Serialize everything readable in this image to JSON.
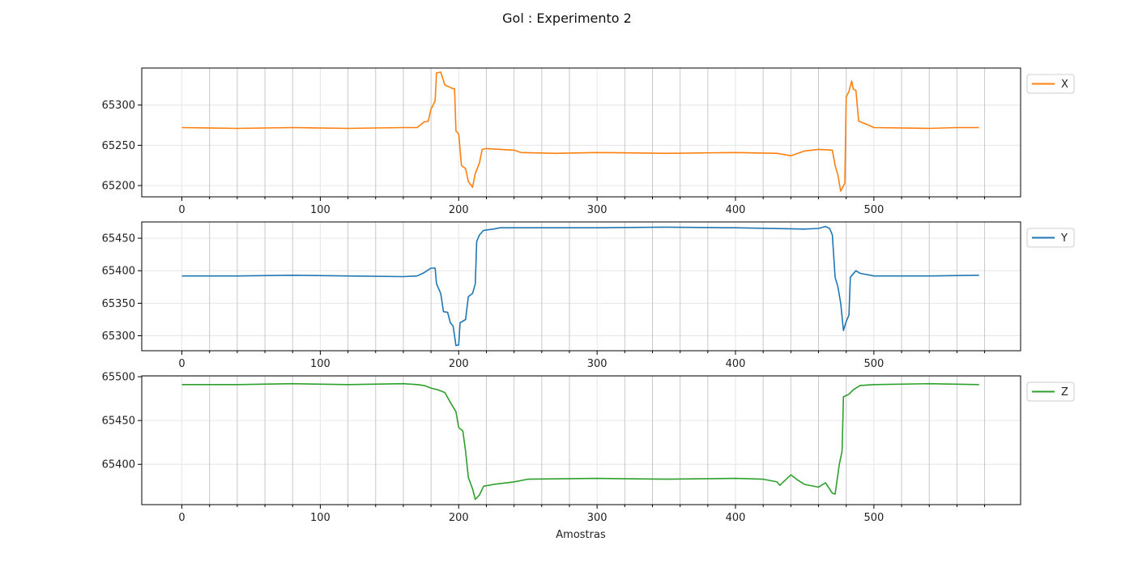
{
  "figure": {
    "title": "Gol : Experimento 2",
    "xlabel": "Amostras"
  },
  "chart_data": [
    {
      "type": "line",
      "title": "",
      "xlabel": "",
      "ylabel": "",
      "xlim": [
        -29,
        606
      ],
      "ylim": [
        65186,
        65346
      ],
      "xticks": [
        0,
        100,
        200,
        300,
        400,
        500
      ],
      "yticks": [
        65200,
        65250,
        65300
      ],
      "grid": true,
      "legend": "right-outside-top",
      "series": [
        {
          "name": "X",
          "color": "#ff7f0e",
          "points": [
            [
              0,
              65272
            ],
            [
              40,
              65271
            ],
            [
              80,
              65272
            ],
            [
              120,
              65271
            ],
            [
              160,
              65272
            ],
            [
              170,
              65272
            ],
            [
              175,
              65279
            ],
            [
              178,
              65280
            ],
            [
              180,
              65295
            ],
            [
              183,
              65305
            ],
            [
              184,
              65340
            ],
            [
              187,
              65341
            ],
            [
              190,
              65325
            ],
            [
              195,
              65321
            ],
            [
              197,
              65320
            ],
            [
              198,
              65268
            ],
            [
              200,
              65264
            ],
            [
              202,
              65225
            ],
            [
              205,
              65221
            ],
            [
              207,
              65205
            ],
            [
              210,
              65198
            ],
            [
              212,
              65215
            ],
            [
              215,
              65228
            ],
            [
              217,
              65245
            ],
            [
              220,
              65246
            ],
            [
              240,
              65244
            ],
            [
              245,
              65241
            ],
            [
              270,
              65240
            ],
            [
              300,
              65241
            ],
            [
              350,
              65240
            ],
            [
              400,
              65241
            ],
            [
              430,
              65240
            ],
            [
              440,
              65237
            ],
            [
              450,
              65243
            ],
            [
              460,
              65245
            ],
            [
              470,
              65244
            ],
            [
              472,
              65225
            ],
            [
              474,
              65213
            ],
            [
              476,
              65193
            ],
            [
              479,
              65203
            ],
            [
              480,
              65310
            ],
            [
              482,
              65317
            ],
            [
              484,
              65330
            ],
            [
              485,
              65320
            ],
            [
              487,
              65318
            ],
            [
              489,
              65280
            ],
            [
              495,
              65276
            ],
            [
              500,
              65272
            ],
            [
              540,
              65271
            ],
            [
              560,
              65272
            ],
            [
              576,
              65272
            ]
          ]
        }
      ]
    },
    {
      "type": "line",
      "title": "",
      "xlabel": "",
      "ylabel": "",
      "xlim": [
        -29,
        606
      ],
      "ylim": [
        65277,
        65475
      ],
      "xticks": [
        0,
        100,
        200,
        300,
        400,
        500
      ],
      "yticks": [
        65300,
        65350,
        65400,
        65450
      ],
      "grid": true,
      "legend": "right-outside-top",
      "series": [
        {
          "name": "Y",
          "color": "#1f77b4",
          "points": [
            [
              0,
              65392
            ],
            [
              40,
              65392
            ],
            [
              80,
              65393
            ],
            [
              120,
              65392
            ],
            [
              160,
              65391
            ],
            [
              170,
              65392
            ],
            [
              175,
              65397
            ],
            [
              180,
              65404
            ],
            [
              183,
              65404
            ],
            [
              184,
              65380
            ],
            [
              187,
              65365
            ],
            [
              189,
              65337
            ],
            [
              192,
              65336
            ],
            [
              194,
              65320
            ],
            [
              196,
              65315
            ],
            [
              198,
              65285
            ],
            [
              200,
              65286
            ],
            [
              201,
              65320
            ],
            [
              205,
              65325
            ],
            [
              207,
              65360
            ],
            [
              210,
              65365
            ],
            [
              212,
              65380
            ],
            [
              213,
              65445
            ],
            [
              215,
              65455
            ],
            [
              218,
              65462
            ],
            [
              225,
              65464
            ],
            [
              230,
              65466
            ],
            [
              300,
              65466
            ],
            [
              350,
              65467
            ],
            [
              400,
              65466
            ],
            [
              450,
              65464
            ],
            [
              460,
              65465
            ],
            [
              465,
              65468
            ],
            [
              468,
              65465
            ],
            [
              470,
              65455
            ],
            [
              472,
              65390
            ],
            [
              474,
              65375
            ],
            [
              476,
              65350
            ],
            [
              478,
              65308
            ],
            [
              480,
              65322
            ],
            [
              482,
              65332
            ],
            [
              483,
              65390
            ],
            [
              487,
              65400
            ],
            [
              490,
              65396
            ],
            [
              500,
              65392
            ],
            [
              540,
              65392
            ],
            [
              576,
              65393
            ]
          ]
        }
      ]
    },
    {
      "type": "line",
      "title": "",
      "xlabel": "Amostras",
      "ylabel": "",
      "xlim": [
        -29,
        606
      ],
      "ylim": [
        65354,
        65501
      ],
      "xticks": [
        0,
        100,
        200,
        300,
        400,
        500
      ],
      "yticks": [
        65400,
        65450,
        65500
      ],
      "grid": true,
      "legend": "right-outside-top",
      "series": [
        {
          "name": "Z",
          "color": "#2ca02c",
          "points": [
            [
              0,
              65491
            ],
            [
              40,
              65491
            ],
            [
              80,
              65492
            ],
            [
              120,
              65491
            ],
            [
              160,
              65492
            ],
            [
              170,
              65491
            ],
            [
              175,
              65490
            ],
            [
              180,
              65487
            ],
            [
              185,
              65485
            ],
            [
              190,
              65482
            ],
            [
              195,
              65468
            ],
            [
              198,
              65460
            ],
            [
              200,
              65442
            ],
            [
              203,
              65438
            ],
            [
              205,
              65415
            ],
            [
              207,
              65385
            ],
            [
              210,
              65372
            ],
            [
              212,
              65360
            ],
            [
              215,
              65365
            ],
            [
              218,
              65375
            ],
            [
              225,
              65377
            ],
            [
              240,
              65380
            ],
            [
              250,
              65383
            ],
            [
              300,
              65384
            ],
            [
              350,
              65383
            ],
            [
              400,
              65384
            ],
            [
              420,
              65383
            ],
            [
              430,
              65380
            ],
            [
              432,
              65376
            ],
            [
              440,
              65388
            ],
            [
              445,
              65382
            ],
            [
              450,
              65377
            ],
            [
              460,
              65374
            ],
            [
              465,
              65379
            ],
            [
              470,
              65367
            ],
            [
              472,
              65366
            ],
            [
              475,
              65400
            ],
            [
              477,
              65415
            ],
            [
              478,
              65477
            ],
            [
              482,
              65480
            ],
            [
              485,
              65485
            ],
            [
              490,
              65490
            ],
            [
              500,
              65491
            ],
            [
              540,
              65492
            ],
            [
              576,
              65491
            ]
          ]
        }
      ]
    }
  ]
}
